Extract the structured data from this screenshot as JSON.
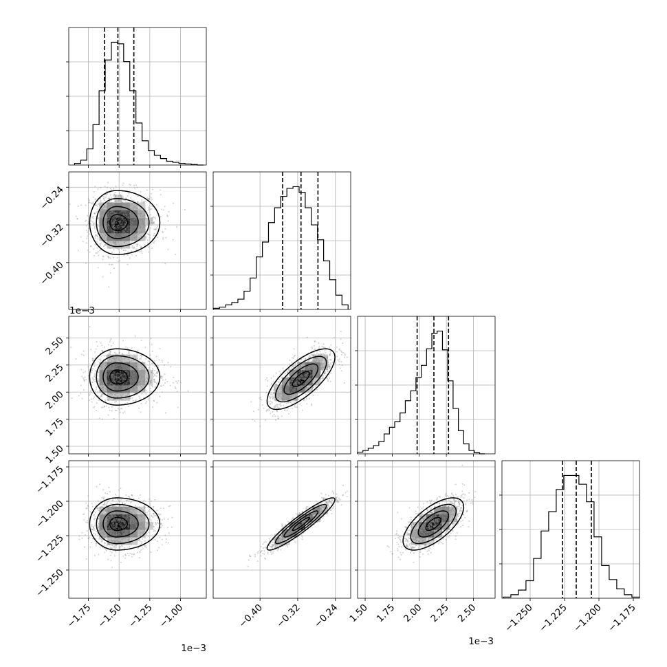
{
  "chart_data": {
    "type": "corner",
    "grid": true,
    "parameters": [
      {
        "ticks": [
          -1.75,
          -1.5,
          -1.25,
          -1.0
        ],
        "tick_labels": [
          "−1.75",
          "−1.50",
          "−1.25",
          "−1.00"
        ],
        "range": [
          -1.91,
          -0.79
        ],
        "offset": "1e−3",
        "median": -1.51,
        "q16": -1.62,
        "q84": -1.38
      },
      {
        "ticks": [
          -0.4,
          -0.32,
          -0.24
        ],
        "tick_labels": [
          "−0.40",
          "−0.32",
          "−0.24"
        ],
        "range": [
          -0.4995,
          -0.2075
        ],
        "offset": "",
        "median": -0.313,
        "q16": -0.352,
        "q84": -0.277
      },
      {
        "ticks": [
          1.5,
          1.75,
          2.0,
          2.25,
          2.5
        ],
        "tick_labels": [
          "1.50",
          "1.75",
          "2.00",
          "2.25",
          "2.50"
        ],
        "range": [
          1.43,
          2.7
        ],
        "offset": "1e−3",
        "median": 2.135,
        "q16": 1.98,
        "q84": 2.27
      },
      {
        "ticks": [
          -1.25,
          -1.225,
          -1.2,
          -1.175
        ],
        "tick_labels": [
          "−1.250",
          "−1.225",
          "−1.200",
          "−1.175"
        ],
        "range": [
          -1.2705,
          -1.1705
        ],
        "offset": "",
        "median": -1.2165,
        "q16": -1.2265,
        "q84": -1.2055
      }
    ],
    "histograms": [
      {
        "param": 0,
        "centers": [
          -1.838,
          -1.788,
          -1.738,
          -1.688,
          -1.638,
          -1.588,
          -1.538,
          -1.488,
          -1.438,
          -1.388,
          -1.338,
          -1.288,
          -1.238,
          -1.188,
          -1.138,
          -1.088,
          -1.038,
          -0.988,
          -0.938,
          -0.888,
          -0.838
        ],
        "counts": [
          3,
          9,
          30,
          75,
          138,
          195,
          228,
          225,
          192,
          138,
          78,
          45,
          27,
          18,
          12,
          7,
          5,
          3,
          2,
          1,
          0
        ]
      },
      {
        "param": 1,
        "centers": [
          -0.4925,
          -0.4795,
          -0.4665,
          -0.4535,
          -0.4405,
          -0.4275,
          -0.4145,
          -0.4015,
          -0.3885,
          -0.3755,
          -0.3625,
          -0.3495,
          -0.3365,
          -0.3235,
          -0.3105,
          -0.2975,
          -0.2845,
          -0.2715,
          -0.2585,
          -0.2455,
          -0.2325,
          -0.2195
        ],
        "counts": [
          2,
          4,
          8,
          12,
          18,
          32,
          55,
          92,
          118,
          152,
          178,
          198,
          212,
          215,
          205,
          178,
          148,
          122,
          85,
          52,
          25,
          8
        ]
      },
      {
        "param": 2,
        "centers": [
          1.4545,
          1.5035,
          1.5525,
          1.6015,
          1.6505,
          1.6995,
          1.7485,
          1.7975,
          1.8465,
          1.8955,
          1.9445,
          1.9935,
          2.0425,
          2.0915,
          2.1405,
          2.1895,
          2.2385,
          2.2875,
          2.3365,
          2.3855,
          2.4345,
          2.4835,
          2.5325,
          2.5815
        ],
        "counts": [
          3,
          6,
          10,
          15,
          22,
          36,
          48,
          58,
          74,
          96,
          114,
          138,
          160,
          190,
          218,
          222,
          188,
          132,
          82,
          42,
          18,
          6,
          2,
          0
        ]
      },
      {
        "param": 3,
        "centers": [
          -1.2668,
          -1.2613,
          -1.2558,
          -1.2503,
          -1.2448,
          -1.2393,
          -1.2338,
          -1.2283,
          -1.2228,
          -1.2173,
          -1.2118,
          -1.2063,
          -1.2008,
          -1.1953,
          -1.1898,
          -1.1843,
          -1.1788,
          -1.1733
        ],
        "counts": [
          2,
          6,
          14,
          30,
          68,
          115,
          148,
          186,
          210,
          210,
          195,
          165,
          105,
          56,
          32,
          16,
          6,
          2
        ]
      }
    ],
    "pairs": [
      {
        "x_param": 0,
        "y_param": 1,
        "cx": -1.52,
        "cy": -0.315,
        "sx": 0.11,
        "sy": 0.034,
        "rho": 0.0
      },
      {
        "x_param": 0,
        "y_param": 2,
        "cx": -1.52,
        "cy": 2.14,
        "sx": 0.11,
        "sy": 0.13,
        "rho": 0.0
      },
      {
        "x_param": 1,
        "y_param": 2,
        "cx": -0.313,
        "cy": 2.12,
        "sx": 0.036,
        "sy": 0.14,
        "rho": 0.72
      },
      {
        "x_param": 0,
        "y_param": 3,
        "cx": -1.52,
        "cy": -1.2165,
        "sx": 0.11,
        "sy": 0.0095,
        "rho": 0.0
      },
      {
        "x_param": 1,
        "y_param": 3,
        "cx": -0.313,
        "cy": -1.2165,
        "sx": 0.036,
        "sy": 0.0095,
        "rho": 0.93
      },
      {
        "x_param": 2,
        "y_param": 3,
        "cx": 2.13,
        "cy": -1.2165,
        "sx": 0.14,
        "sy": 0.0095,
        "rho": 0.65
      }
    ]
  }
}
